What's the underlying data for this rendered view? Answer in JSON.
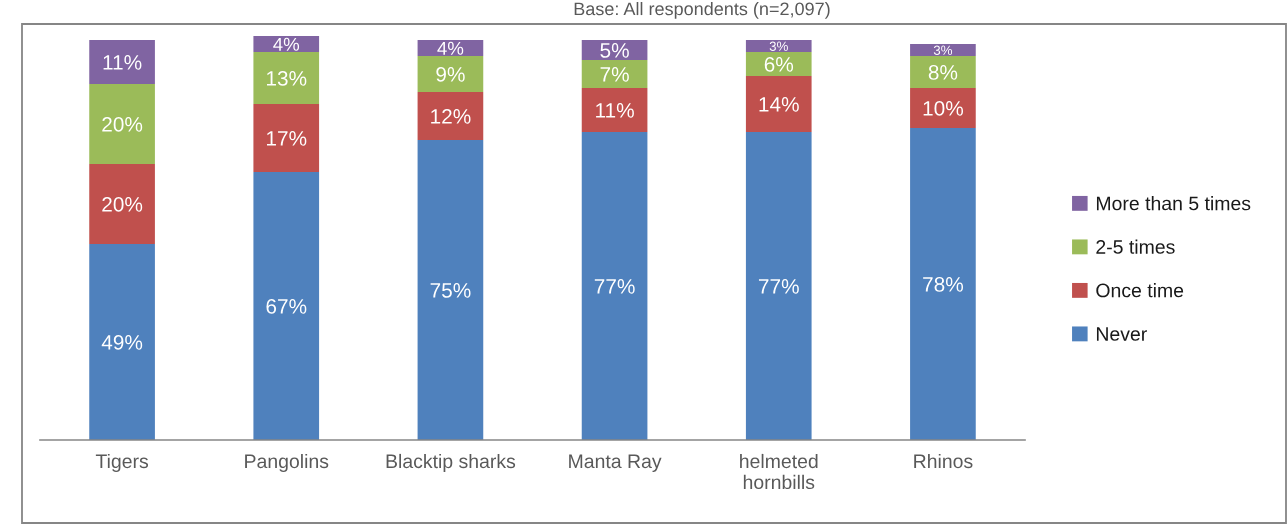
{
  "chart_data": {
    "type": "bar",
    "subtitle": "Base: All respondents (n=2,097)",
    "categories": [
      "Tigers",
      "Pangolins",
      "Blacktip sharks",
      "Manta Ray",
      "helmeted hornbills",
      "Rhinos"
    ],
    "stacked": true,
    "series": [
      {
        "name": "Never",
        "color": "#4f81bd",
        "values": [
          49,
          67,
          75,
          77,
          77,
          78
        ],
        "value_labels": [
          "49%",
          "67%",
          "75%",
          "77%",
          "77%",
          "78%"
        ]
      },
      {
        "name": "Once time",
        "color": "#c0504d",
        "values": [
          20,
          17,
          12,
          11,
          14,
          10
        ],
        "value_labels": [
          "20%",
          "17%",
          "12%",
          "11%",
          "14%",
          "10%"
        ]
      },
      {
        "name": "2-5 times",
        "color": "#9bbb59",
        "values": [
          20,
          13,
          9,
          7,
          6,
          8
        ],
        "value_labels": [
          "20%",
          "13%",
          "9%",
          "7%",
          "6%",
          "8%"
        ]
      },
      {
        "name": "More than 5 times",
        "color": "#8064a2",
        "values": [
          11,
          4,
          4,
          5,
          3,
          3
        ],
        "value_labels": [
          "11%",
          "4%",
          "4%",
          "5%",
          "3%",
          "3%"
        ]
      }
    ],
    "legend": "right",
    "tick_labels": "x"
  }
}
